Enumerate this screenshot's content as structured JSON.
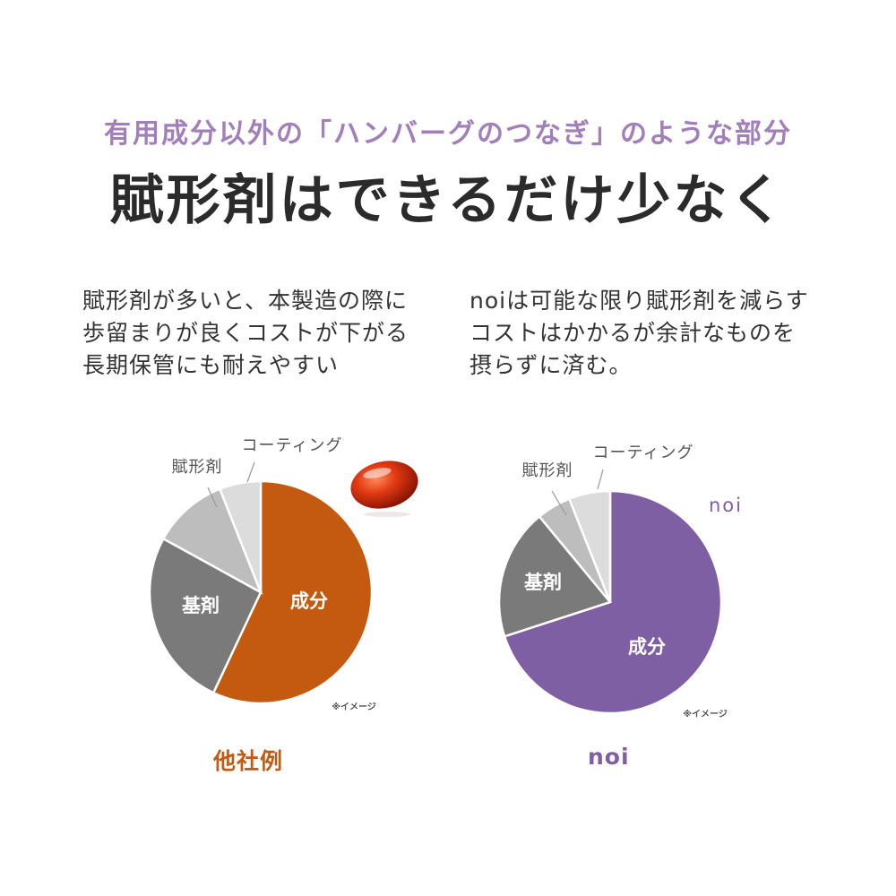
{
  "header": {
    "subtitle": "有用成分以外の「ハンバーグのつなぎ」のような部分",
    "title": "賦形剤はできるだけ少なく"
  },
  "description": {
    "left": [
      "賦形剤が多いと、本製造の際に",
      "歩留まりが良くコストが下がる",
      "長期保管にも耐えやすい"
    ],
    "right": [
      "noiは可能な限り賦形剤を減らす",
      "コストはかかるが余計なものを",
      "摂らずに済む。"
    ]
  },
  "colors": {
    "subtitle": "#a27fbb",
    "left_accent": "#c45a10",
    "right_accent": "#7f5fa3"
  },
  "chart_data": [
    {
      "type": "pie",
      "caption": "他社例",
      "note": "※イメージ",
      "slices": [
        {
          "label": "成分",
          "value": 57,
          "color": "#c45a10"
        },
        {
          "label": "基剤",
          "value": 26,
          "color": "#7a7a7a"
        },
        {
          "label": "賦形剤",
          "value": 11,
          "color": "#bdbdbd"
        },
        {
          "label": "コーティング",
          "value": 6,
          "color": "#dcdcdc"
        }
      ]
    },
    {
      "type": "pie",
      "caption": "noi",
      "note": "※イメージ",
      "brand": "noi",
      "slices": [
        {
          "label": "成分",
          "value": 70,
          "color": "#7f5fa3"
        },
        {
          "label": "基剤",
          "value": 19,
          "color": "#7a7a7a"
        },
        {
          "label": "賦形剤",
          "value": 5,
          "color": "#bdbdbd"
        },
        {
          "label": "コーティング",
          "value": 6,
          "color": "#dcdcdc"
        }
      ]
    }
  ]
}
